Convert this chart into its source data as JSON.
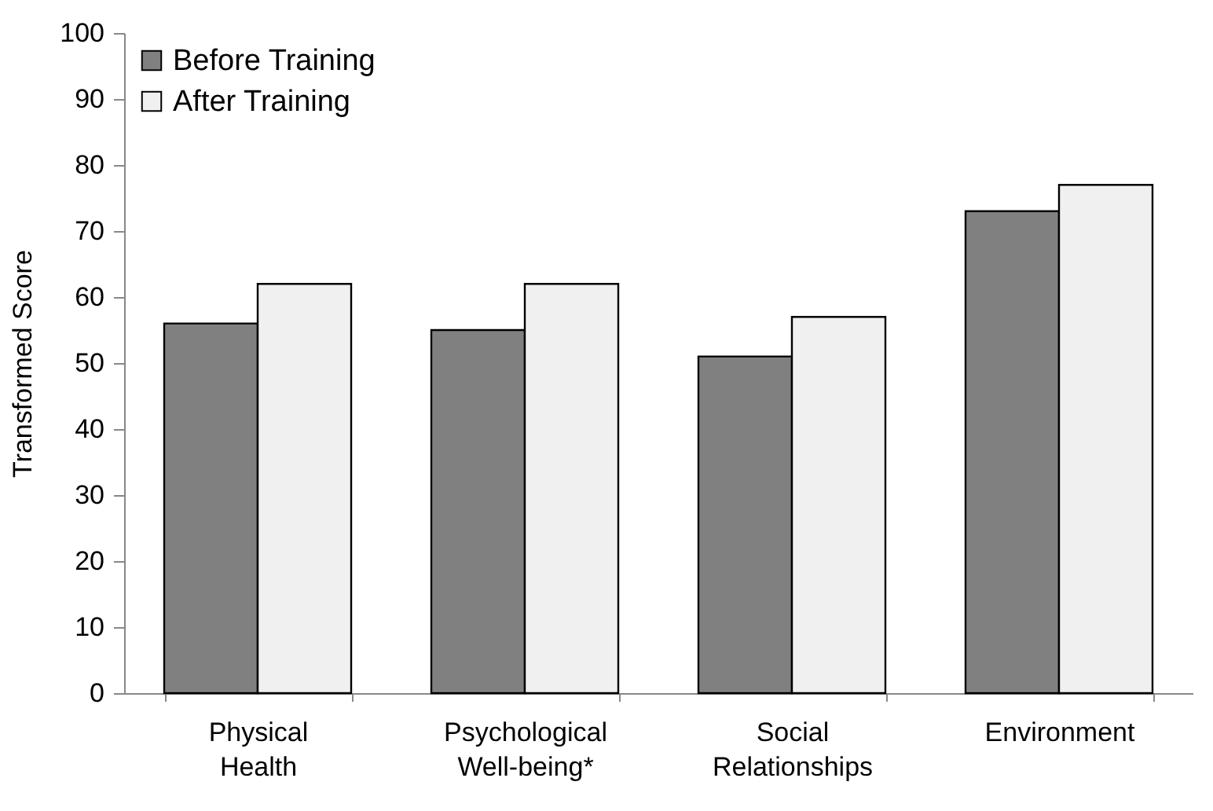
{
  "chart_data": {
    "type": "bar",
    "ylabel": "Transformed Score",
    "categories": [
      "Physical Health",
      "Psychological Well-being*",
      "Social Relationships",
      "Environment"
    ],
    "series": [
      {
        "name": "Before Training",
        "color": "#808080",
        "values": [
          56,
          55,
          51,
          73
        ]
      },
      {
        "name": "After Training",
        "color": "#f0f0f0",
        "values": [
          62,
          62,
          57,
          77
        ]
      }
    ],
    "ylim": [
      0,
      100
    ],
    "yticks": [
      0,
      10,
      20,
      30,
      40,
      50,
      60,
      70,
      80,
      90,
      100
    ],
    "grid": false,
    "legend": "top left"
  }
}
